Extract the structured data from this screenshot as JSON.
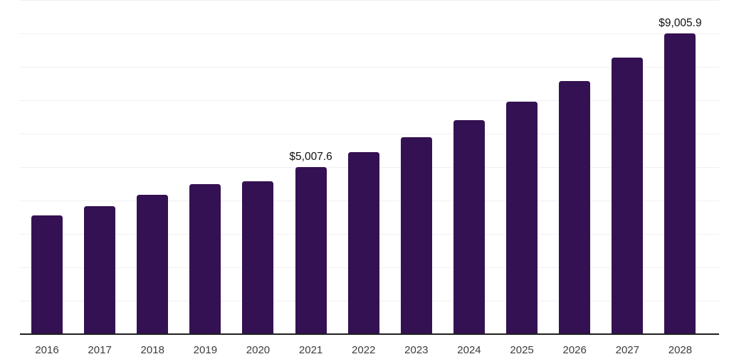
{
  "chart_data": {
    "type": "bar",
    "title": "",
    "xlabel": "",
    "ylabel": "",
    "categories": [
      "2016",
      "2017",
      "2018",
      "2019",
      "2020",
      "2021",
      "2022",
      "2023",
      "2024",
      "2025",
      "2026",
      "2027",
      "2028"
    ],
    "values": [
      3550,
      3840,
      4170,
      4500,
      4570,
      5007.6,
      5450,
      5900,
      6420,
      6970,
      7590,
      8280,
      9005.9
    ],
    "point_labels": [
      "",
      "",
      "",
      "",
      "",
      "$5,007.6",
      "",
      "",
      "",
      "",
      "",
      "",
      "$9,005.9"
    ],
    "ylim": [
      0,
      10000
    ],
    "gridline_interval": 1000,
    "grid": "horizontal-only",
    "legend": "none",
    "y_axis_tick_labels_visible": false,
    "colors": {
      "bar": "#341152",
      "gridline": "#f0f0f0",
      "axis_line": "#1f1f1f",
      "tick_label": "#3c3c3c",
      "value_label": "#111111",
      "background": "#ffffff"
    }
  }
}
